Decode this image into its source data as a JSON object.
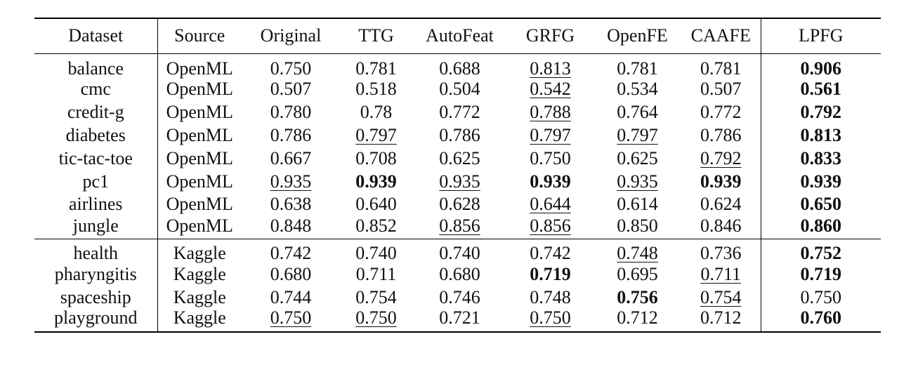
{
  "table": {
    "headers": [
      "Dataset",
      "Source",
      "Original",
      "TTG",
      "AutoFeat",
      "GRFG",
      "OpenFE",
      "CAAFE",
      "LPFG"
    ],
    "groups": [
      {
        "rows": [
          {
            "dataset": "balance",
            "source": "OpenML",
            "values": [
              "0.750",
              "0.781",
              "0.688",
              "0.813",
              "0.781",
              "0.781",
              "0.906"
            ],
            "bold": [
              6
            ],
            "underline": [
              3
            ]
          },
          {
            "dataset": "cmc",
            "source": "OpenML",
            "values": [
              "0.507",
              "0.518",
              "0.504",
              "0.542",
              "0.534",
              "0.507",
              "0.561"
            ],
            "bold": [
              6
            ],
            "underline": [
              3
            ]
          },
          {
            "dataset": "credit-g",
            "source": "OpenML",
            "values": [
              "0.780",
              "0.78",
              "0.772",
              "0.788",
              "0.764",
              "0.772",
              "0.792"
            ],
            "bold": [
              6
            ],
            "underline": [
              3
            ]
          },
          {
            "dataset": "diabetes",
            "source": "OpenML",
            "values": [
              "0.786",
              "0.797",
              "0.786",
              "0.797",
              "0.797",
              "0.786",
              "0.813"
            ],
            "bold": [
              6
            ],
            "underline": [
              1,
              3,
              4
            ]
          },
          {
            "dataset": "tic-tac-toe",
            "source": "OpenML",
            "values": [
              "0.667",
              "0.708",
              "0.625",
              "0.750",
              "0.625",
              "0.792",
              "0.833"
            ],
            "bold": [
              6
            ],
            "underline": [
              5
            ]
          },
          {
            "dataset": "pc1",
            "source": "OpenML",
            "values": [
              "0.935",
              "0.939",
              "0.935",
              "0.939",
              "0.935",
              "0.939",
              "0.939"
            ],
            "bold": [
              1,
              3,
              5,
              6
            ],
            "underline": [
              0,
              2,
              4
            ]
          },
          {
            "dataset": "airlines",
            "source": "OpenML",
            "values": [
              "0.638",
              "0.640",
              "0.628",
              "0.644",
              "0.614",
              "0.624",
              "0.650"
            ],
            "bold": [
              6
            ],
            "underline": [
              3
            ]
          },
          {
            "dataset": "jungle",
            "source": "OpenML",
            "values": [
              "0.848",
              "0.852",
              "0.856",
              "0.856",
              "0.850",
              "0.846",
              "0.860"
            ],
            "bold": [
              6
            ],
            "underline": [
              2,
              3
            ]
          }
        ]
      },
      {
        "rows": [
          {
            "dataset": "health",
            "source": "Kaggle",
            "values": [
              "0.742",
              "0.740",
              "0.740",
              "0.742",
              "0.748",
              "0.736",
              "0.752"
            ],
            "bold": [
              6
            ],
            "underline": [
              4
            ]
          },
          {
            "dataset": "pharyngitis",
            "source": "Kaggle",
            "values": [
              "0.680",
              "0.711",
              "0.680",
              "0.719",
              "0.695",
              "0.711",
              "0.719"
            ],
            "bold": [
              3,
              6
            ],
            "underline": [
              5
            ]
          },
          {
            "dataset": "spaceship",
            "source": "Kaggle",
            "values": [
              "0.744",
              "0.754",
              "0.746",
              "0.748",
              "0.756",
              "0.754",
              "0.750"
            ],
            "bold": [
              4
            ],
            "underline": [
              5
            ]
          },
          {
            "dataset": "playground",
            "source": "Kaggle",
            "values": [
              "0.750",
              "0.750",
              "0.721",
              "0.750",
              "0.712",
              "0.712",
              "0.760"
            ],
            "bold": [
              6
            ],
            "underline": [
              0,
              1,
              3
            ]
          }
        ]
      }
    ]
  }
}
